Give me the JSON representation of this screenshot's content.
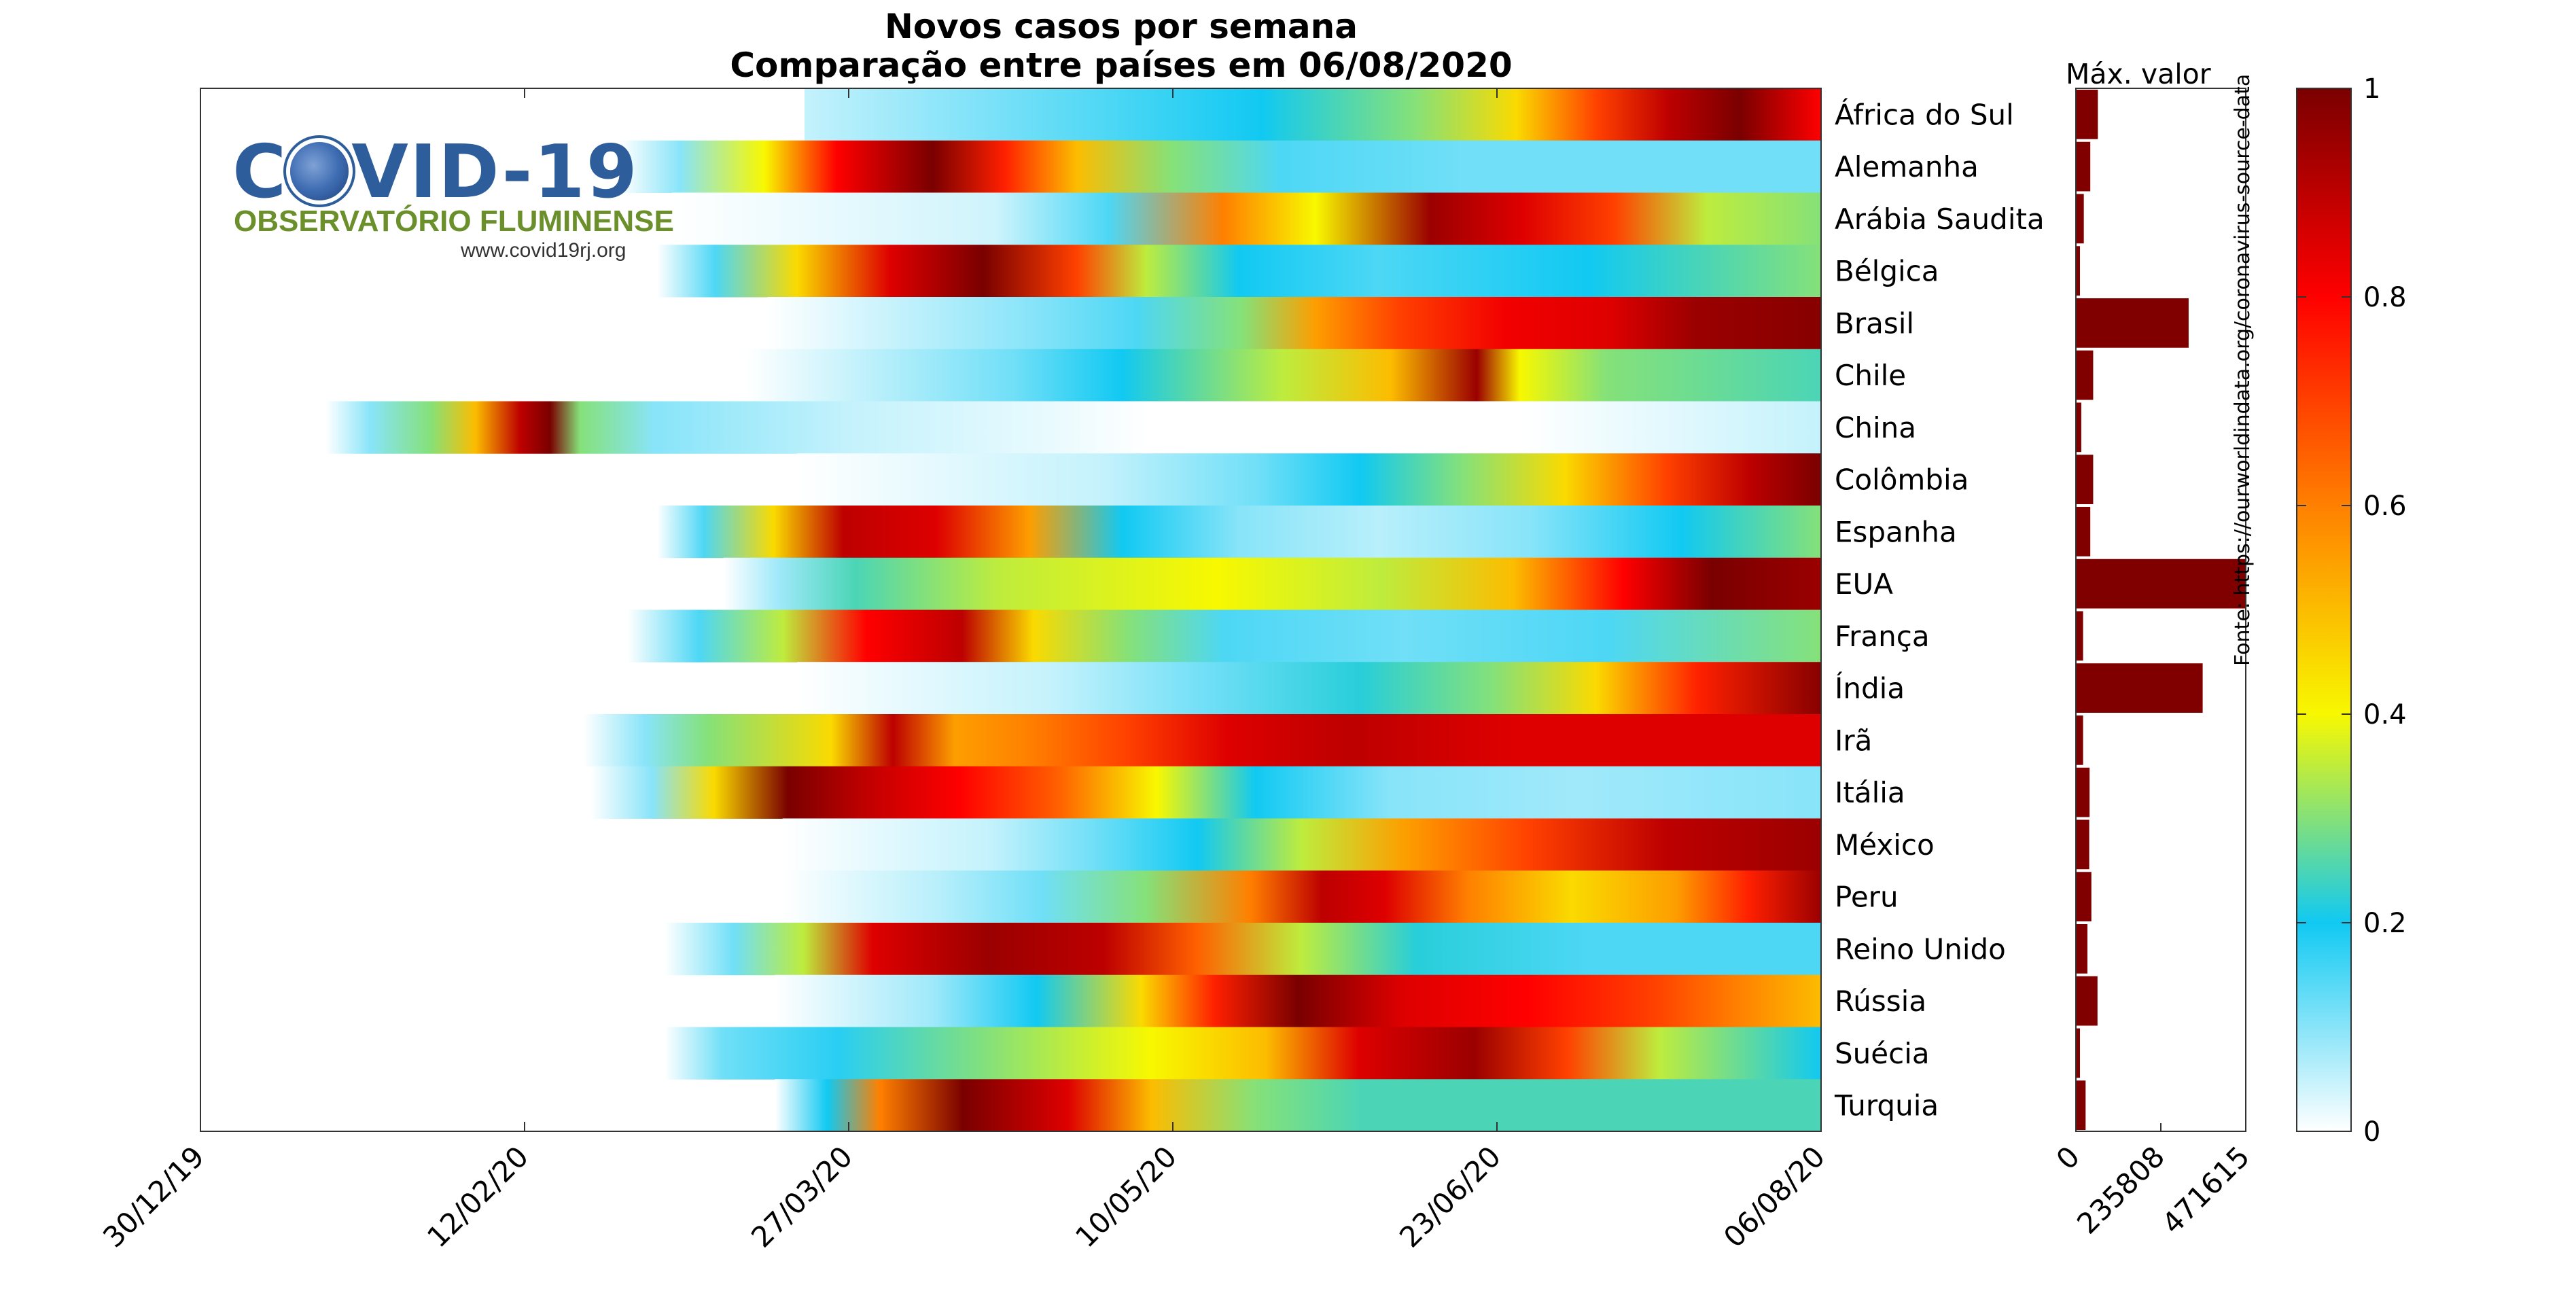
{
  "chart_data": {
    "type": "heatmap",
    "title": "Novos casos por semana",
    "subtitle": "Comparação entre países em 06/08/2020",
    "x_axis": {
      "type": "date",
      "range": [
        "2019-12-30",
        "2020-08-06"
      ],
      "tick_labels": [
        "30/12/19",
        "12/02/20",
        "27/03/20",
        "10/05/20",
        "23/06/20",
        "06/08/20"
      ]
    },
    "rows": [
      {
        "country": "África do Sul",
        "start": "2020-03-21",
        "stops": [
          [
            0,
            0.05
          ],
          [
            0.15,
            0.1
          ],
          [
            0.3,
            0.15
          ],
          [
            0.45,
            0.2
          ],
          [
            0.6,
            0.3
          ],
          [
            0.7,
            0.45
          ],
          [
            0.78,
            0.7
          ],
          [
            0.85,
            0.9
          ],
          [
            0.92,
            1.0
          ],
          [
            1,
            0.8
          ]
        ]
      },
      {
        "country": "Alemanha",
        "start": "2020-02-25",
        "stops": [
          [
            0,
            0.0
          ],
          [
            0.05,
            0.1
          ],
          [
            0.12,
            0.4
          ],
          [
            0.18,
            0.8
          ],
          [
            0.26,
            1.0
          ],
          [
            0.32,
            0.75
          ],
          [
            0.38,
            0.5
          ],
          [
            0.46,
            0.3
          ],
          [
            0.55,
            0.15
          ],
          [
            0.7,
            0.12
          ],
          [
            1,
            0.12
          ]
        ]
      },
      {
        "country": "Arábia Saudita",
        "start": "2020-03-03",
        "stops": [
          [
            0,
            0.0
          ],
          [
            0.28,
            0.04
          ],
          [
            0.38,
            0.15
          ],
          [
            0.48,
            0.6
          ],
          [
            0.56,
            0.4
          ],
          [
            0.66,
            0.95
          ],
          [
            0.74,
            0.85
          ],
          [
            0.82,
            0.7
          ],
          [
            0.9,
            0.35
          ],
          [
            1,
            0.3
          ]
        ]
      },
      {
        "country": "Bélgica",
        "start": "2020-03-01",
        "stops": [
          [
            0,
            0.0
          ],
          [
            0.05,
            0.15
          ],
          [
            0.12,
            0.45
          ],
          [
            0.2,
            0.85
          ],
          [
            0.28,
            1.0
          ],
          [
            0.36,
            0.7
          ],
          [
            0.42,
            0.35
          ],
          [
            0.5,
            0.2
          ],
          [
            0.62,
            0.15
          ],
          [
            0.8,
            0.2
          ],
          [
            1,
            0.3
          ]
        ]
      },
      {
        "country": "Brasil",
        "start": "2020-03-16",
        "stops": [
          [
            0,
            0.0
          ],
          [
            0.25,
            0.1
          ],
          [
            0.35,
            0.15
          ],
          [
            0.45,
            0.3
          ],
          [
            0.52,
            0.55
          ],
          [
            0.6,
            0.7
          ],
          [
            0.7,
            0.82
          ],
          [
            0.8,
            0.85
          ],
          [
            0.88,
            0.95
          ],
          [
            1,
            0.98
          ]
        ]
      },
      {
        "country": "Chile",
        "start": "2020-03-13",
        "stops": [
          [
            0,
            0.0
          ],
          [
            0.25,
            0.12
          ],
          [
            0.35,
            0.2
          ],
          [
            0.5,
            0.35
          ],
          [
            0.6,
            0.5
          ],
          [
            0.68,
            0.95
          ],
          [
            0.72,
            0.4
          ],
          [
            0.8,
            0.3
          ],
          [
            1,
            0.25
          ]
        ]
      },
      {
        "country": "China",
        "start": "2020-01-16",
        "stops": [
          [
            0,
            0.0
          ],
          [
            0.03,
            0.1
          ],
          [
            0.07,
            0.3
          ],
          [
            0.1,
            0.5
          ],
          [
            0.13,
            0.9
          ],
          [
            0.15,
            1.0
          ],
          [
            0.17,
            0.3
          ],
          [
            0.22,
            0.1
          ],
          [
            0.35,
            0.05
          ],
          [
            0.48,
            0.02
          ],
          [
            0.55,
            0.0
          ],
          [
            0.8,
            0.0
          ],
          [
            1,
            0.05
          ]
        ]
      },
      {
        "country": "Colômbia",
        "start": "2020-03-20",
        "stops": [
          [
            0,
            0.0
          ],
          [
            0.3,
            0.05
          ],
          [
            0.45,
            0.12
          ],
          [
            0.55,
            0.2
          ],
          [
            0.65,
            0.3
          ],
          [
            0.75,
            0.45
          ],
          [
            0.85,
            0.7
          ],
          [
            0.93,
            0.9
          ],
          [
            1,
            1.0
          ]
        ]
      },
      {
        "country": "Espanha",
        "start": "2020-03-01",
        "stops": [
          [
            0,
            0.0
          ],
          [
            0.04,
            0.15
          ],
          [
            0.1,
            0.45
          ],
          [
            0.16,
            0.9
          ],
          [
            0.24,
            0.85
          ],
          [
            0.32,
            0.55
          ],
          [
            0.4,
            0.2
          ],
          [
            0.5,
            0.1
          ],
          [
            0.62,
            0.06
          ],
          [
            0.75,
            0.1
          ],
          [
            0.88,
            0.2
          ],
          [
            1,
            0.3
          ]
        ]
      },
      {
        "country": "EUA",
        "start": "2020-03-10",
        "stops": [
          [
            0,
            0.0
          ],
          [
            0.05,
            0.08
          ],
          [
            0.12,
            0.25
          ],
          [
            0.25,
            0.35
          ],
          [
            0.45,
            0.4
          ],
          [
            0.6,
            0.35
          ],
          [
            0.72,
            0.5
          ],
          [
            0.82,
            0.8
          ],
          [
            0.9,
            1.0
          ],
          [
            1,
            0.95
          ]
        ]
      },
      {
        "country": "França",
        "start": "2020-02-26",
        "stops": [
          [
            0,
            0.0
          ],
          [
            0.06,
            0.15
          ],
          [
            0.13,
            0.35
          ],
          [
            0.2,
            0.8
          ],
          [
            0.28,
            0.9
          ],
          [
            0.34,
            0.45
          ],
          [
            0.42,
            0.3
          ],
          [
            0.5,
            0.15
          ],
          [
            0.65,
            0.12
          ],
          [
            0.82,
            0.15
          ],
          [
            1,
            0.3
          ]
        ]
      },
      {
        "country": "Índia",
        "start": "2020-03-20",
        "stops": [
          [
            0,
            0.0
          ],
          [
            0.25,
            0.05
          ],
          [
            0.4,
            0.12
          ],
          [
            0.55,
            0.22
          ],
          [
            0.68,
            0.3
          ],
          [
            0.78,
            0.45
          ],
          [
            0.88,
            0.75
          ],
          [
            1,
            0.98
          ]
        ]
      },
      {
        "country": "Irã",
        "start": "2020-02-20",
        "stops": [
          [
            0,
            0.0
          ],
          [
            0.05,
            0.1
          ],
          [
            0.1,
            0.3
          ],
          [
            0.2,
            0.45
          ],
          [
            0.25,
            0.9
          ],
          [
            0.3,
            0.55
          ],
          [
            0.36,
            0.6
          ],
          [
            0.44,
            0.7
          ],
          [
            0.52,
            0.85
          ],
          [
            0.62,
            0.9
          ],
          [
            0.75,
            0.85
          ],
          [
            1,
            0.85
          ]
        ]
      },
      {
        "country": "Itália",
        "start": "2020-02-21",
        "stops": [
          [
            0,
            0.0
          ],
          [
            0.05,
            0.1
          ],
          [
            0.1,
            0.45
          ],
          [
            0.16,
            1.0
          ],
          [
            0.22,
            0.9
          ],
          [
            0.3,
            0.8
          ],
          [
            0.38,
            0.65
          ],
          [
            0.46,
            0.4
          ],
          [
            0.54,
            0.2
          ],
          [
            0.65,
            0.1
          ],
          [
            0.8,
            0.08
          ],
          [
            1,
            0.1
          ]
        ]
      },
      {
        "country": "México",
        "start": "2020-03-18",
        "stops": [
          [
            0,
            0.0
          ],
          [
            0.2,
            0.05
          ],
          [
            0.3,
            0.12
          ],
          [
            0.4,
            0.2
          ],
          [
            0.5,
            0.35
          ],
          [
            0.6,
            0.55
          ],
          [
            0.72,
            0.7
          ],
          [
            0.85,
            0.9
          ],
          [
            1,
            0.95
          ]
        ]
      },
      {
        "country": "Peru",
        "start": "2020-03-18",
        "stops": [
          [
            0,
            0.0
          ],
          [
            0.15,
            0.06
          ],
          [
            0.25,
            0.12
          ],
          [
            0.35,
            0.3
          ],
          [
            0.45,
            0.6
          ],
          [
            0.52,
            0.9
          ],
          [
            0.58,
            0.85
          ],
          [
            0.66,
            0.6
          ],
          [
            0.76,
            0.45
          ],
          [
            0.86,
            0.55
          ],
          [
            0.93,
            0.75
          ],
          [
            1,
            0.95
          ]
        ]
      },
      {
        "country": "Reino Unido",
        "start": "2020-03-02",
        "stops": [
          [
            0,
            0.0
          ],
          [
            0.06,
            0.12
          ],
          [
            0.12,
            0.35
          ],
          [
            0.18,
            0.85
          ],
          [
            0.28,
            0.95
          ],
          [
            0.38,
            0.9
          ],
          [
            0.46,
            0.65
          ],
          [
            0.55,
            0.35
          ],
          [
            0.65,
            0.22
          ],
          [
            0.8,
            0.15
          ],
          [
            1,
            0.15
          ]
        ]
      },
      {
        "country": "Rússia",
        "start": "2020-03-17",
        "stops": [
          [
            0,
            0.0
          ],
          [
            0.15,
            0.08
          ],
          [
            0.25,
            0.2
          ],
          [
            0.35,
            0.45
          ],
          [
            0.42,
            0.75
          ],
          [
            0.5,
            1.0
          ],
          [
            0.6,
            0.85
          ],
          [
            0.72,
            0.8
          ],
          [
            0.84,
            0.7
          ],
          [
            0.92,
            0.6
          ],
          [
            1,
            0.5
          ]
        ]
      },
      {
        "country": "Suécia",
        "start": "2020-03-02",
        "stops": [
          [
            0,
            0.0
          ],
          [
            0.05,
            0.12
          ],
          [
            0.15,
            0.18
          ],
          [
            0.28,
            0.3
          ],
          [
            0.42,
            0.4
          ],
          [
            0.52,
            0.5
          ],
          [
            0.6,
            0.85
          ],
          [
            0.7,
            0.95
          ],
          [
            0.78,
            0.7
          ],
          [
            0.86,
            0.35
          ],
          [
            1,
            0.2
          ]
        ]
      },
      {
        "country": "Turquia",
        "start": "2020-03-17",
        "stops": [
          [
            0,
            0.0
          ],
          [
            0.05,
            0.2
          ],
          [
            0.1,
            0.6
          ],
          [
            0.18,
            1.0
          ],
          [
            0.28,
            0.85
          ],
          [
            0.36,
            0.5
          ],
          [
            0.46,
            0.3
          ],
          [
            0.56,
            0.25
          ],
          [
            0.75,
            0.25
          ],
          [
            1,
            0.25
          ]
        ]
      }
    ],
    "bar_panel": {
      "title": "Máx. valor",
      "max": 471615,
      "tick_labels": [
        "0",
        "235808",
        "471615"
      ],
      "values": [
        {
          "country": "África do Sul",
          "value": 61000
        },
        {
          "country": "Alemanha",
          "value": 40000
        },
        {
          "country": "Arábia Saudita",
          "value": 22000
        },
        {
          "country": "Bélgica",
          "value": 10000
        },
        {
          "country": "Brasil",
          "value": 313000
        },
        {
          "country": "Chile",
          "value": 48000
        },
        {
          "country": "China",
          "value": 15000
        },
        {
          "country": "Colômbia",
          "value": 48000
        },
        {
          "country": "Espanha",
          "value": 40000
        },
        {
          "country": "EUA",
          "value": 471615
        },
        {
          "country": "França",
          "value": 20000
        },
        {
          "country": "Índia",
          "value": 352000
        },
        {
          "country": "Irã",
          "value": 20000
        },
        {
          "country": "Itália",
          "value": 38000
        },
        {
          "country": "México",
          "value": 37000
        },
        {
          "country": "Peru",
          "value": 43000
        },
        {
          "country": "Reino Unido",
          "value": 32000
        },
        {
          "country": "Rússia",
          "value": 60000
        },
        {
          "country": "Suécia",
          "value": 10000
        },
        {
          "country": "Turquia",
          "value": 27000
        }
      ]
    },
    "colorbar": {
      "range": [
        0,
        1
      ],
      "tick_labels": [
        "0",
        "0.2",
        "0.4",
        "0.6",
        "0.8",
        "1"
      ],
      "colors": [
        "#ffffff",
        "#11c9f2",
        "#f8f800",
        "#ff8000",
        "#ff0000",
        "#7a0000"
      ]
    },
    "source": "Fonte: https://ourworldindata.org/coronavirus-source-data",
    "logo": {
      "main": "C  VID-19",
      "sub": "OBSERVATÓRIO FLUMINENSE",
      "url": "www.covid19rj.org"
    }
  }
}
